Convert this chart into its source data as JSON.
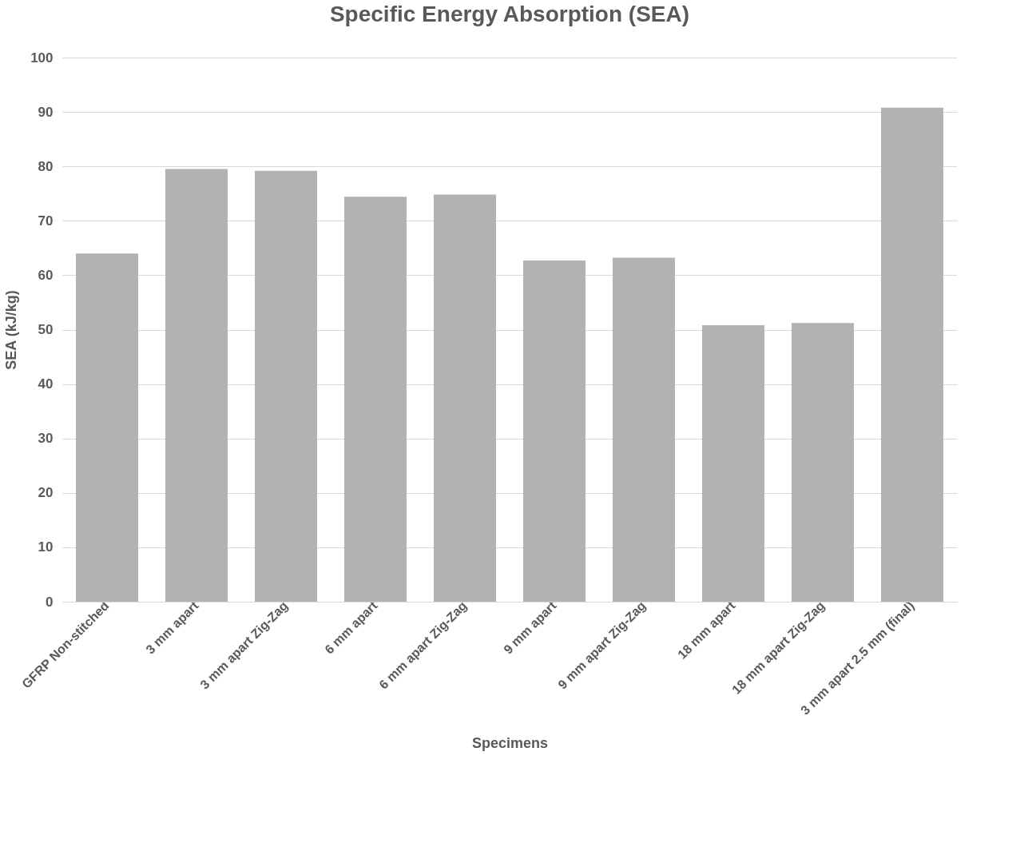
{
  "chart_data": {
    "type": "bar",
    "title": "Specific Energy Absorption (SEA)",
    "xlabel": "Specimens",
    "ylabel": "SEA (kJ/kg)",
    "categories": [
      "GFRP Non-stitched",
      "3 mm apart",
      "3 mm apart Zig-Zag",
      "6 mm apart",
      "6 mm apart Zig-Zag",
      "9 mm apart",
      "9 mm apart Zig-Zag",
      "18 mm apart",
      "18 mm apart Zig-Zag",
      "3 mm apart 2.5 mm (final)"
    ],
    "values": [
      64.0,
      79.5,
      79.2,
      74.4,
      74.8,
      62.7,
      63.2,
      50.8,
      51.2,
      90.8
    ],
    "color": "#b2b2b2",
    "ylim": [
      0,
      100
    ],
    "yticks": [
      0,
      10,
      20,
      30,
      40,
      50,
      60,
      70,
      80,
      90,
      100
    ],
    "grid": "y"
  }
}
